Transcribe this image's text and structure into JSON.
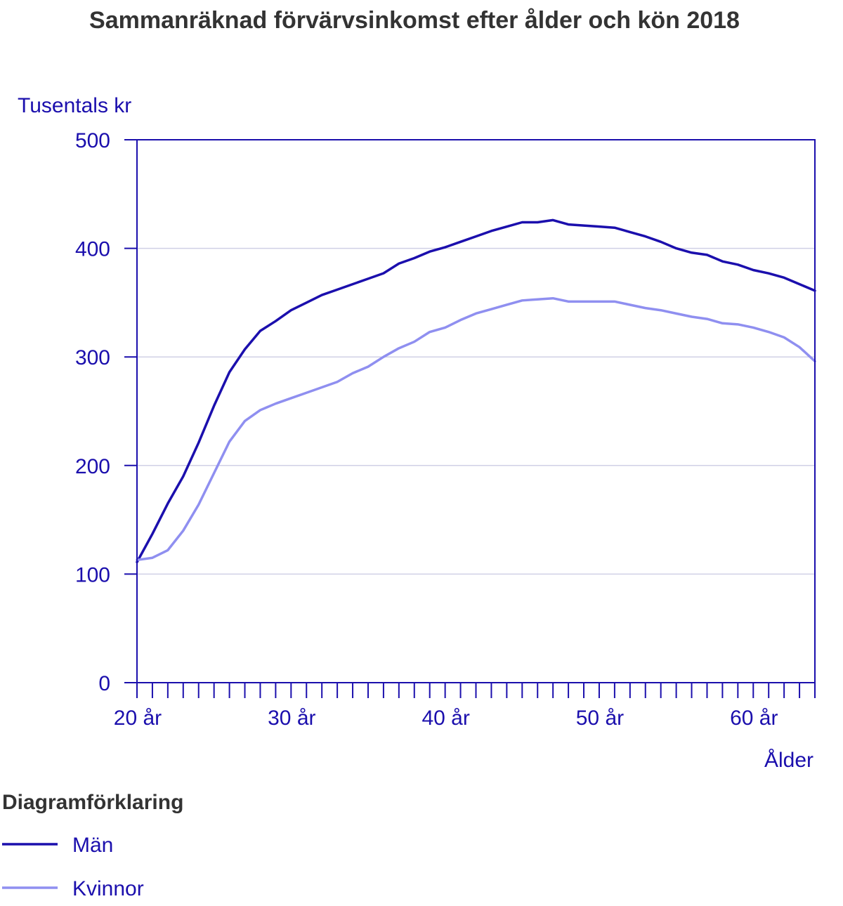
{
  "chart_data": {
    "type": "line",
    "title": "Sammanräknad förvärvsinkomst efter ålder och kön 2018",
    "ylabel": "Tusentals kr",
    "xlabel": "Ålder",
    "ylim": [
      0,
      500
    ],
    "yticks": [
      0,
      100,
      200,
      300,
      400,
      500
    ],
    "xlim": [
      20,
      64
    ],
    "xticks": [
      20,
      30,
      40,
      50,
      60
    ],
    "xtick_labels": [
      "20 år",
      "30 år",
      "40 år",
      "50 år",
      "60 år"
    ],
    "grid": "horizontal",
    "legend_title": "Diagramförklaring",
    "legend_position": "bottom-left",
    "x": [
      20,
      21,
      22,
      23,
      24,
      25,
      26,
      27,
      28,
      29,
      30,
      31,
      32,
      33,
      34,
      35,
      36,
      37,
      38,
      39,
      40,
      41,
      42,
      43,
      44,
      45,
      46,
      47,
      48,
      49,
      50,
      51,
      52,
      53,
      54,
      55,
      56,
      57,
      58,
      59,
      60,
      61,
      62,
      63,
      64
    ],
    "series": [
      {
        "name": "Män",
        "color": "#1b0fad",
        "values": [
          111,
          137,
          165,
          190,
          221,
          255,
          286,
          307,
          324,
          333,
          343,
          350,
          357,
          362,
          367,
          372,
          377,
          386,
          391,
          397,
          401,
          406,
          411,
          416,
          420,
          424,
          424,
          426,
          422,
          421,
          420,
          419,
          415,
          411,
          406,
          400,
          396,
          394,
          388,
          385,
          380,
          377,
          373,
          367,
          361
        ]
      },
      {
        "name": "Kvinnor",
        "color": "#8f8ff0",
        "values": [
          113,
          115,
          122,
          140,
          164,
          193,
          222,
          241,
          251,
          257,
          262,
          267,
          272,
          277,
          285,
          291,
          300,
          308,
          314,
          323,
          327,
          334,
          340,
          344,
          348,
          352,
          353,
          354,
          351,
          351,
          351,
          351,
          348,
          345,
          343,
          340,
          337,
          335,
          331,
          330,
          327,
          323,
          318,
          309,
          296
        ]
      }
    ]
  }
}
